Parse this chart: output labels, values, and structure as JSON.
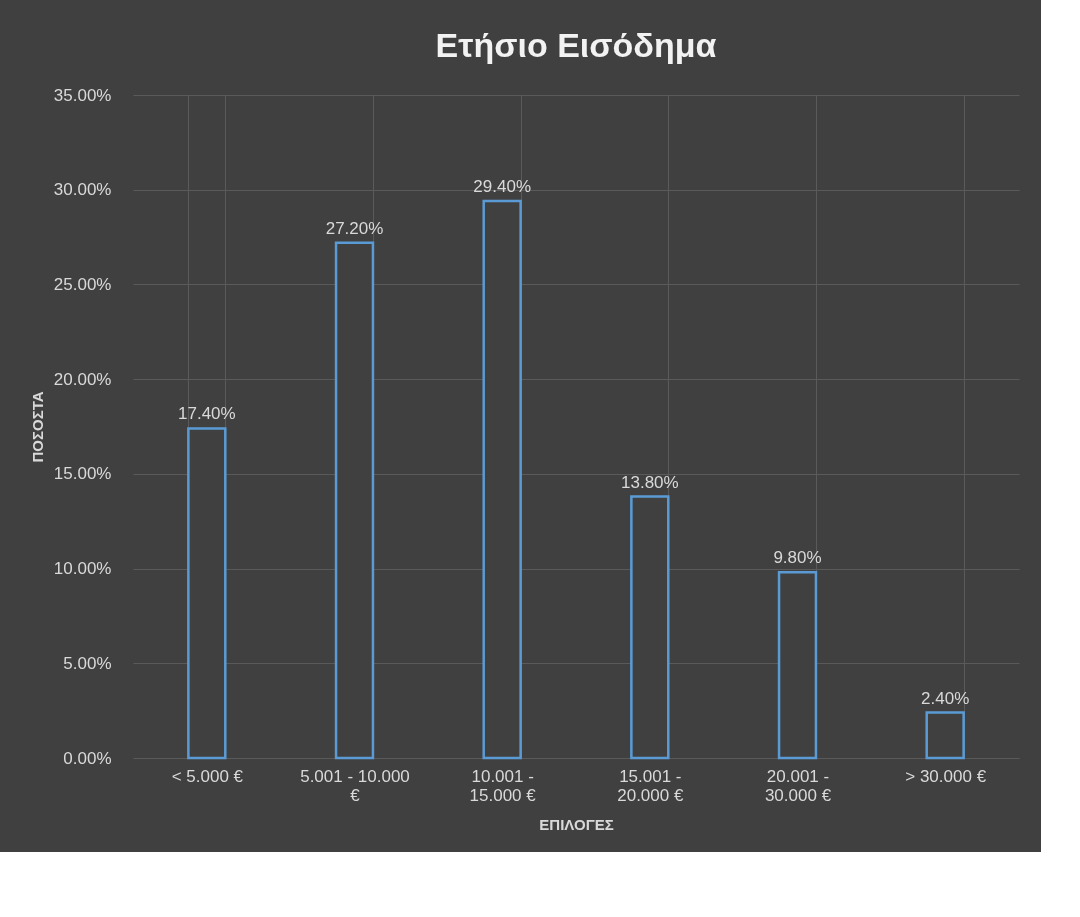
{
  "chart_data": {
    "type": "bar",
    "title": "Ετήσιο Εισόδημα",
    "xlabel": "ΕΠΙΛΟΓΕΣ",
    "ylabel": "ΠΟΣΟΣΤΑ",
    "categories": [
      "< 5.000 €",
      "5.001 - 10.000\n€",
      "10.001 -\n15.000 €",
      "15.001  -\n20.000 €",
      "20.001 -\n30.000 €",
      "> 30.000 €"
    ],
    "values": [
      17.4,
      27.2,
      29.4,
      13.8,
      9.8,
      2.4
    ],
    "value_labels": [
      "17.40%",
      "27.20%",
      "29.40%",
      "13.80%",
      "9.80%",
      "2.40%"
    ],
    "color": "#5b9bd5",
    "ylim": [
      0,
      35
    ],
    "yticks": [
      {
        "value": 0,
        "label": "0.00%"
      },
      {
        "value": 5,
        "label": "5.00%"
      },
      {
        "value": 10,
        "label": "10.00%"
      },
      {
        "value": 15,
        "label": "15.00%"
      },
      {
        "value": 20,
        "label": "20.00%"
      },
      {
        "value": 25,
        "label": "25.00%"
      },
      {
        "value": 30,
        "label": "30.00%"
      },
      {
        "value": 35,
        "label": "35.00%"
      }
    ],
    "grid": true
  }
}
